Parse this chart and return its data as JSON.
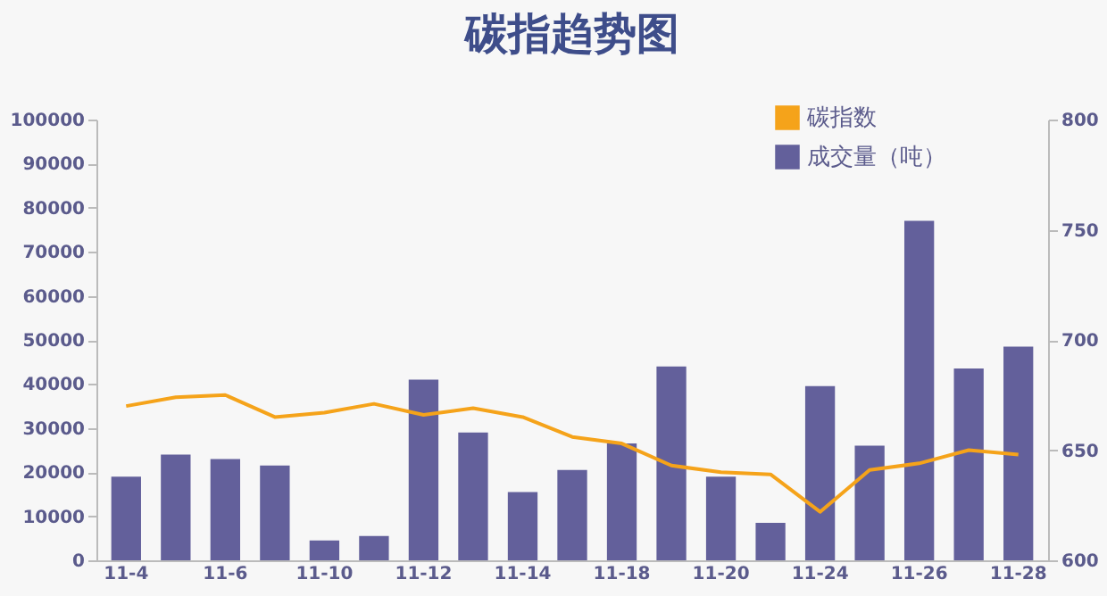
{
  "chart_data": {
    "type": "bar",
    "title": "碳指趋势图",
    "categories": [
      "11-4",
      null,
      "11-6",
      null,
      "11-10",
      null,
      "11-12",
      null,
      "11-14",
      null,
      "11-18",
      null,
      "11-20",
      null,
      "11-24",
      null,
      "11-26",
      null,
      "11-28"
    ],
    "series": [
      {
        "name": "碳指数",
        "type": "line",
        "axis": "y2",
        "color": "#f5a31a",
        "values": [
          670,
          674,
          675,
          665,
          667,
          671,
          666,
          669,
          665,
          656,
          653,
          643,
          640,
          639,
          622,
          641,
          644,
          650,
          648
        ]
      },
      {
        "name": "成交量（吨）",
        "color": "#63609b",
        "values": [
          19000,
          24000,
          23000,
          21500,
          4500,
          5500,
          41000,
          29000,
          15500,
          20500,
          26500,
          44000,
          19000,
          8500,
          39500,
          26000,
          77000,
          43500,
          48500
        ]
      }
    ],
    "ylim": [
      0,
      100000
    ],
    "yticks": [
      0,
      10000,
      20000,
      30000,
      40000,
      50000,
      60000,
      70000,
      80000,
      90000,
      100000
    ],
    "y2lim": [
      600,
      800
    ],
    "y2ticks": [
      600,
      650,
      700,
      750,
      800
    ],
    "grid": false,
    "legend": "top right",
    "marker": "none",
    "line_style": "solid"
  }
}
